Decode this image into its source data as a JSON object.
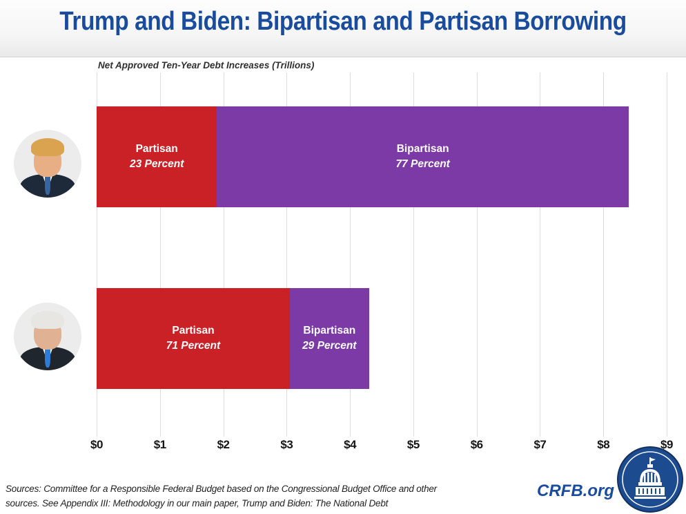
{
  "title": "Trump and Biden: Bipartisan and Partisan Borrowing",
  "subtitle": "Net Approved Ten-Year Debt Increases (Trillions)",
  "chart_data": {
    "type": "bar",
    "orientation": "horizontal-stacked",
    "title": "Trump and Biden: Bipartisan and Partisan Borrowing",
    "axis_label": "Net Approved Ten-Year Debt Increases (Trillions)",
    "categories": [
      "Trump",
      "Biden"
    ],
    "series": [
      {
        "name": "Partisan",
        "color": "#ca2127",
        "values_trillions": [
          1.9,
          3.05
        ],
        "percent": [
          23,
          71
        ]
      },
      {
        "name": "Bipartisan",
        "color": "#7c3aa6",
        "values_trillions": [
          6.5,
          1.25
        ],
        "percent": [
          77,
          29
        ]
      }
    ],
    "totals_trillions": [
      8.4,
      4.3
    ],
    "xlim": [
      0,
      9
    ],
    "x_ticks": [
      "$0",
      "$1",
      "$2",
      "$3",
      "$4",
      "$5",
      "$6",
      "$7",
      "$8",
      "$9"
    ],
    "grid": true,
    "legend": "labels-inside-bars"
  },
  "bars": {
    "trump": {
      "partisan": {
        "label": "Partisan",
        "percent": "23 Percent"
      },
      "bipartisan": {
        "label": "Bipartisan",
        "percent": "77 Percent"
      }
    },
    "biden": {
      "partisan": {
        "label": "Partisan",
        "percent": "71 Percent"
      },
      "bipartisan": {
        "label": "Bipartisan",
        "percent": "29 Percent"
      }
    }
  },
  "footer": {
    "line1": "Sources: Committee for a Responsible Federal Budget based on the Congressional Budget Office and other",
    "line2": "sources. See Appendix III: Methodology in our main paper, Trump and Biden: The National Debt"
  },
  "branding": {
    "site": "CRFB.org",
    "logo_icon": "capitol-building-icon"
  },
  "colors": {
    "title_blue": "#1a4c9e",
    "partisan_red": "#ca2127",
    "bipartisan_purple": "#7c3aa6",
    "gridline": "#dcdcdc",
    "logo_navy": "#1c4b8f"
  }
}
